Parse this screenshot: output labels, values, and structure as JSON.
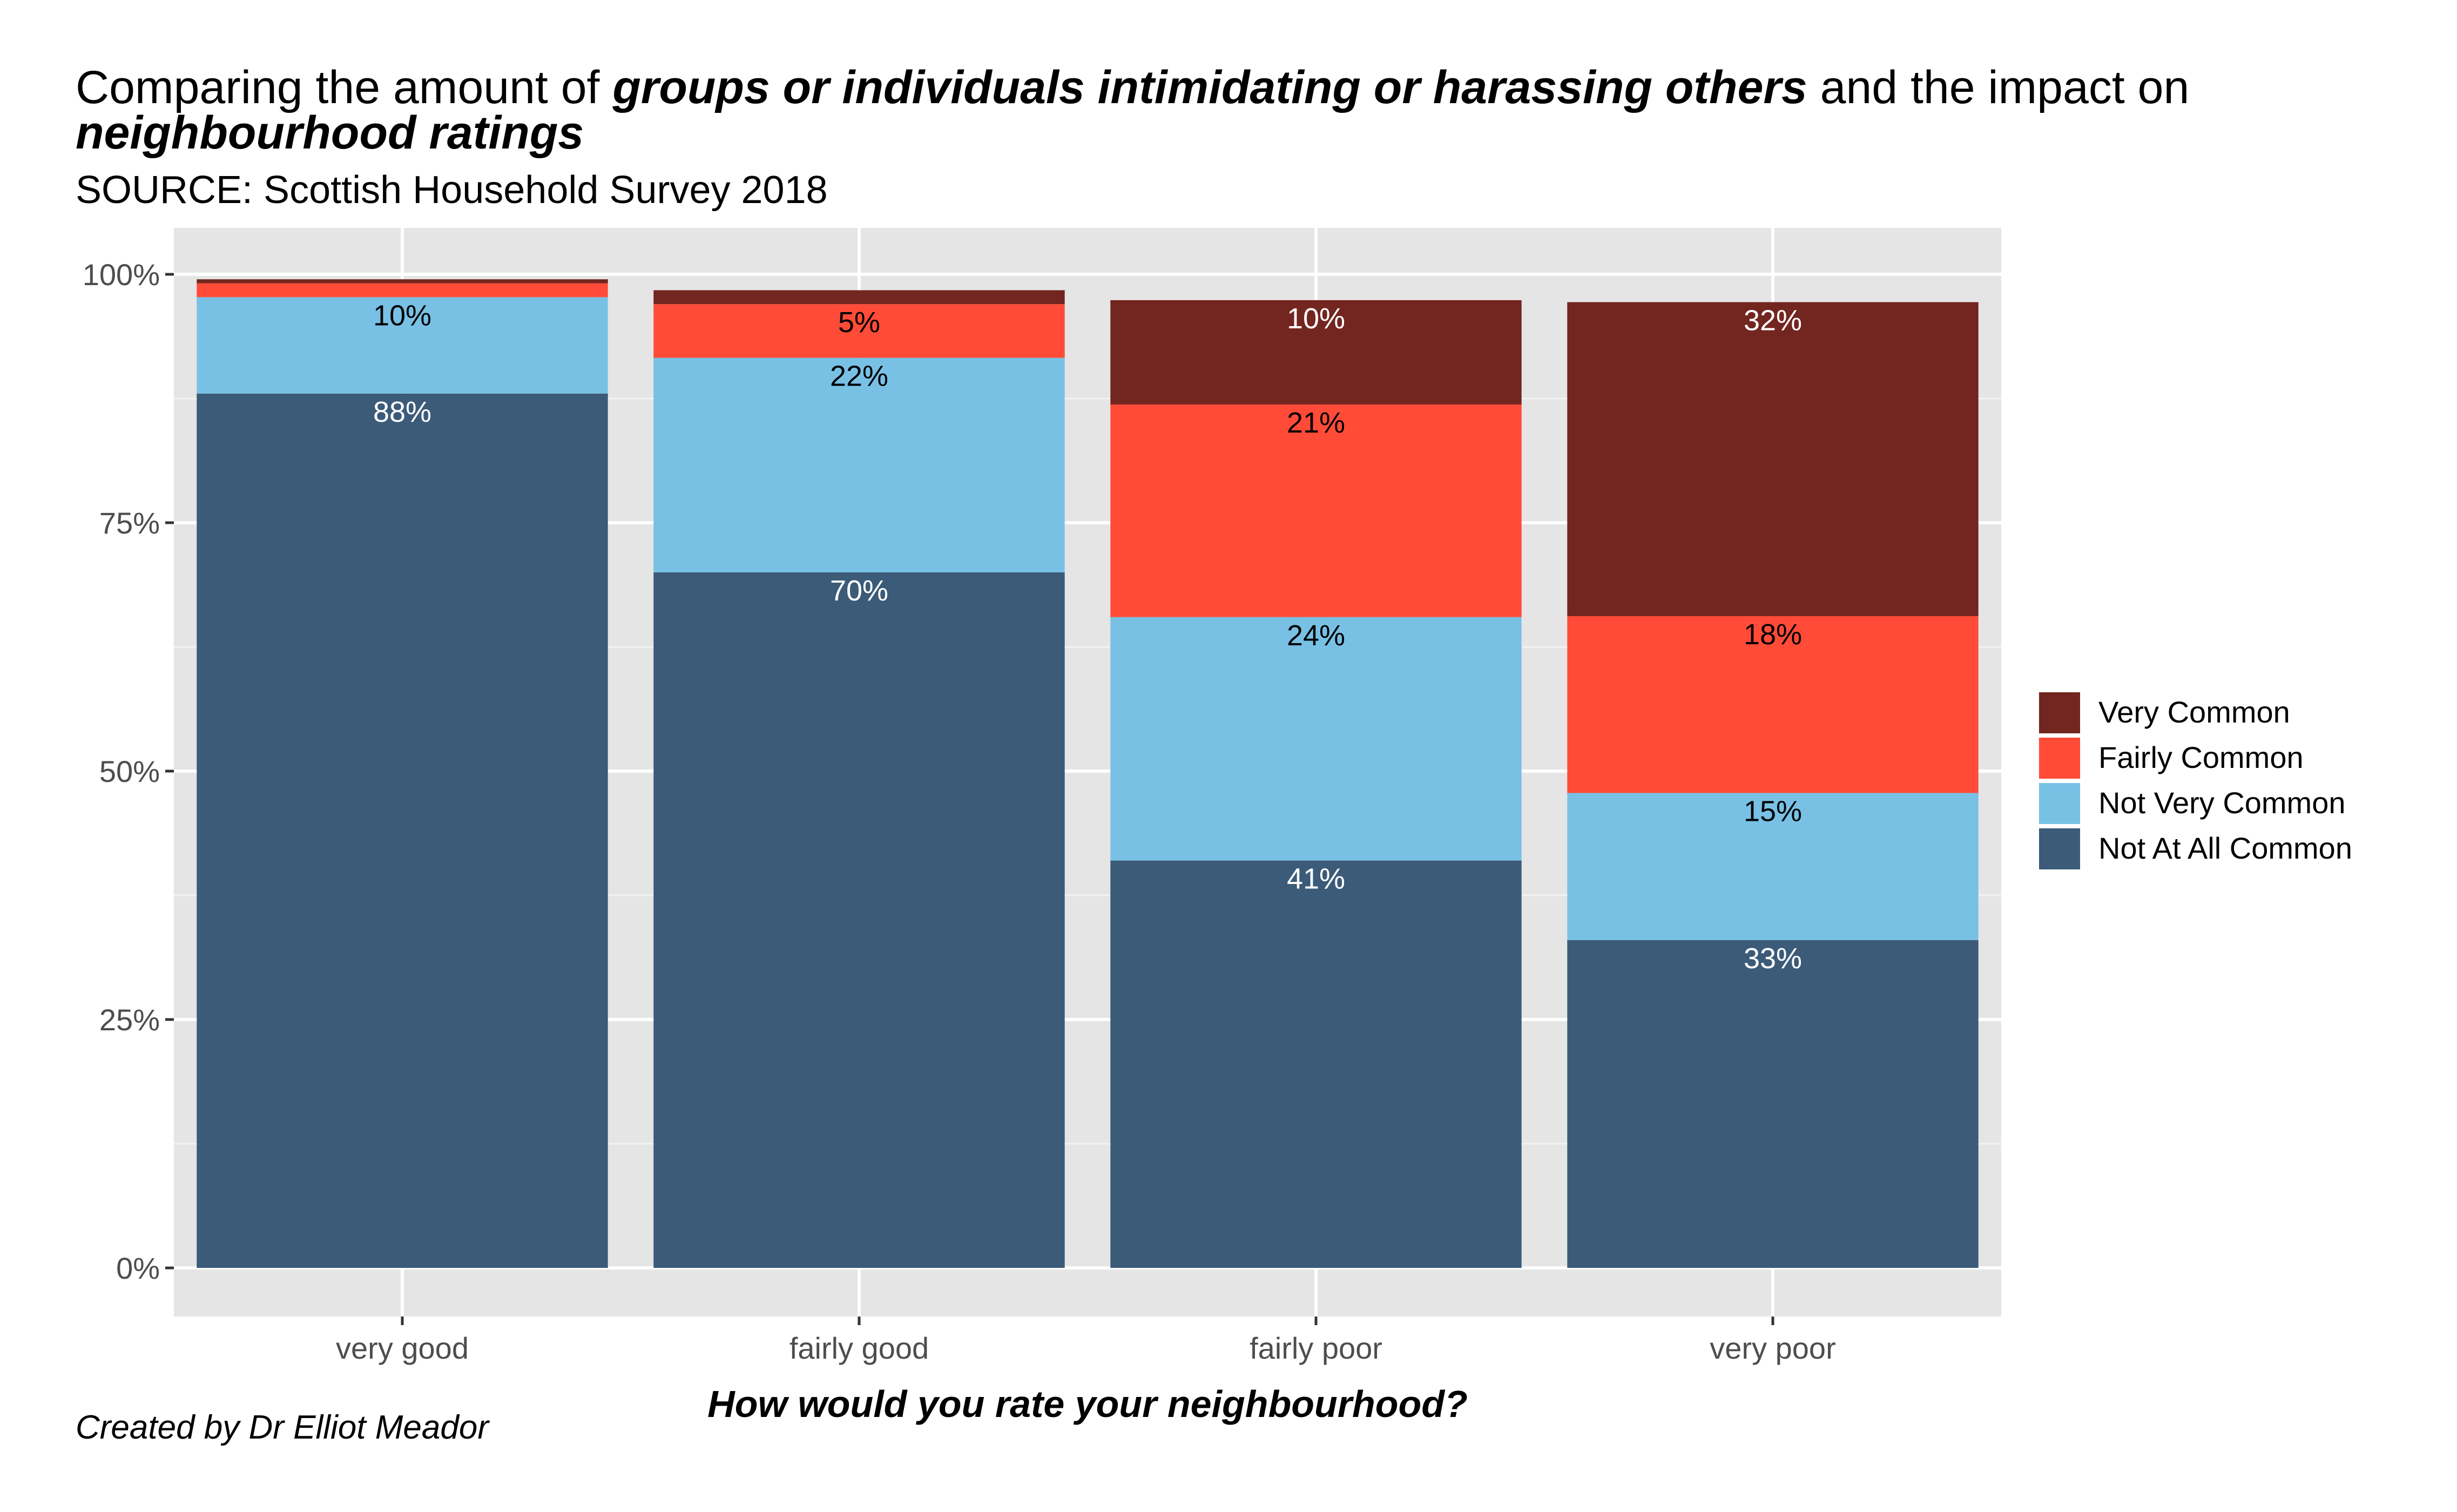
{
  "title": {
    "p1": "Comparing the amount of ",
    "b1": "groups or individuals intimidating or harassing others",
    "p2": " and the impact on ",
    "b2": "neighbourhood ratings"
  },
  "subtitle": "SOURCE: Scottish Household Survey 2018",
  "caption": "Created by Dr Elliot Meador",
  "chart_data": {
    "type": "bar",
    "stacked": true,
    "xlabel": "How would you rate your neighbourhood?",
    "ylabel": "",
    "categories": [
      "very good",
      "fairly good",
      "fairly poor",
      "very poor"
    ],
    "ylim": [
      0,
      1
    ],
    "y_ticks": [
      0,
      0.25,
      0.5,
      0.75,
      1.0
    ],
    "y_tick_labels": [
      "0%",
      "25%",
      "50%",
      "75%",
      "100%"
    ],
    "grid": true,
    "legend_position": "right",
    "series": [
      {
        "name": "Not At All Common",
        "color": "#3B5B78",
        "label_color": "#ffffff",
        "values": [
          0.88,
          0.7,
          0.41,
          0.33
        ],
        "labels": [
          "88%",
          "70%",
          "41%",
          "33%"
        ]
      },
      {
        "name": "Not Very Common",
        "color": "#78C1E5",
        "label_color": "#000000",
        "values": [
          0.097,
          0.216,
          0.245,
          0.148
        ],
        "labels": [
          "10%",
          "22%",
          "24%",
          "15%"
        ]
      },
      {
        "name": "Fairly Common",
        "color": "#FF4B38",
        "label_color": "#000000",
        "values": [
          0.014,
          0.054,
          0.214,
          0.178
        ],
        "labels": [
          "",
          "5%",
          "21%",
          "18%"
        ]
      },
      {
        "name": "Very Common",
        "color": "#73251F",
        "label_color": "#ffffff",
        "values": [
          0.004,
          0.014,
          0.105,
          0.316
        ],
        "labels": [
          "",
          "",
          "10%",
          "32%"
        ]
      }
    ],
    "legend_order": [
      "Very Common",
      "Fairly Common",
      "Not Very Common",
      "Not At All Common"
    ]
  }
}
